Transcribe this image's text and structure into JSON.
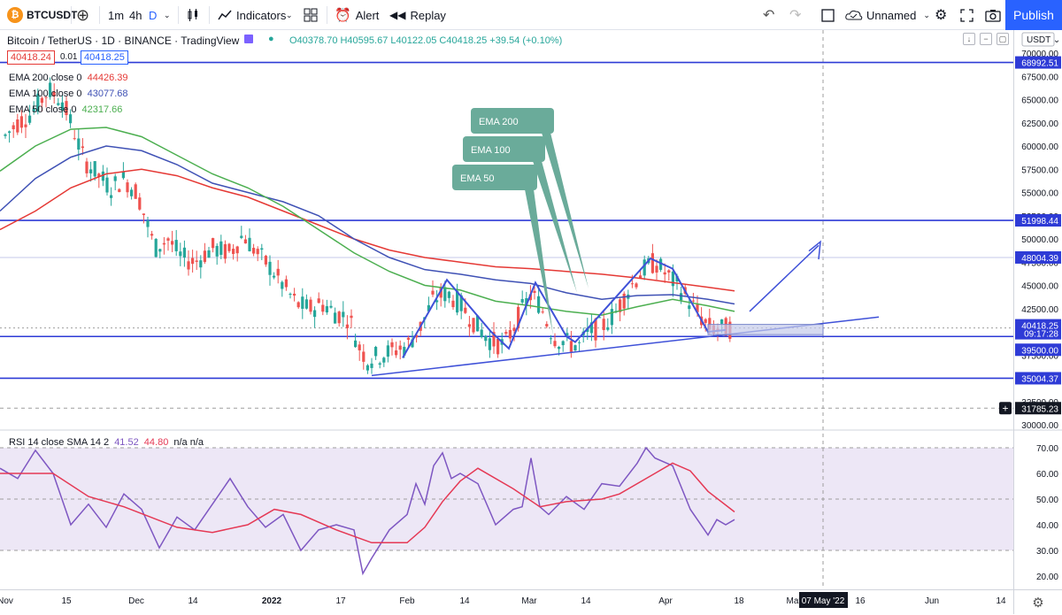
{
  "toolbar": {
    "symbol": "BTCUSDT",
    "symbol_icon": "bitcoin-icon",
    "intervals": [
      "1m",
      "4h",
      "D"
    ],
    "indicators_label": "Indicators",
    "alert_label": "Alert",
    "replay_label": "Replay",
    "layout_name": "Unnamed",
    "publish_label": "Publish"
  },
  "header": {
    "title": "Bitcoin / TetherUS · 1D · BINANCE · TradingView",
    "ohlc": "O40378.70 H40595.67 L40122.05 C40418.25 +39.54 (+0.10%)",
    "bid": "40418.24",
    "spread": "0.01",
    "ask": "40418.25",
    "currency": "USDT"
  },
  "indicators": [
    {
      "label": "EMA 200 close 0",
      "value": "44426.39",
      "color": "#e53935"
    },
    {
      "label": "EMA 100 close 0",
      "value": "43077.68",
      "color": "#3f51b5"
    },
    {
      "label": "EMA 50 close 0",
      "value": "42317.66",
      "color": "#4caf50"
    }
  ],
  "rsi_legend": {
    "label": "RSI 14 close SMA 14 2",
    "v1": "41.52",
    "v2": "44.80",
    "v3": "n/a n/a"
  },
  "colors": {
    "up": "#26a69a",
    "down": "#ef5350",
    "ema200": "#e53935",
    "ema100": "#3f51b5",
    "ema50": "#4caf50",
    "hline": "#2e3bd6",
    "drawing": "#3f51d8",
    "callout": "#6aab9a",
    "rsi": "#7e57c2",
    "rsi_ma": "#e53955",
    "rsi_band": "#ede7f6"
  },
  "callouts": [
    "EMA 200",
    "EMA 100",
    "EMA 50"
  ],
  "price_scale": {
    "ticks": [
      "70000.00",
      "67500.00",
      "65000.00",
      "62500.00",
      "60000.00",
      "57500.00",
      "55000.00",
      "52500.00",
      "50000.00",
      "47500.00",
      "45000.00",
      "42500.00",
      "37500.00",
      "32500.00",
      "30000.00"
    ],
    "levels": [
      {
        "value": "68992.51",
        "color": "#2e3bd6"
      },
      {
        "value": "51998.44",
        "color": "#2e3bd6"
      },
      {
        "value": "48004.39",
        "color": "#2e3bd6"
      },
      {
        "value": "40418.25",
        "color": "#2e3bd6"
      },
      {
        "value": "39500.00",
        "color": "#2e3bd6"
      },
      {
        "value": "35004.37",
        "color": "#2e3bd6"
      },
      {
        "value": "31785.23",
        "color": "#131722"
      }
    ],
    "countdown": "09:17:28"
  },
  "rsi_scale": {
    "ticks": [
      "70.00",
      "60.00",
      "50.00",
      "40.00",
      "30.00",
      "20.00"
    ]
  },
  "time_axis": {
    "labels": [
      "Nov",
      "15",
      "Dec",
      "14",
      "2022",
      "17",
      "Feb",
      "14",
      "Mar",
      "14",
      "Apr",
      "18",
      "May",
      "16",
      "Jun",
      "14"
    ],
    "crosshair_label": "07 May '22"
  },
  "chart_data": {
    "type": "candlestick",
    "title": "Bitcoin / TetherUS · 1D · BINANCE",
    "price_range": [
      29000,
      72000
    ],
    "rsi_range": [
      18,
      72
    ],
    "horizontal_levels": [
      68992.51,
      51998.44,
      39500.0,
      35004.37
    ],
    "series": [
      {
        "name": "EMA 200 close 0",
        "last": 44426.39
      },
      {
        "name": "EMA 100 close 0",
        "last": 43077.68
      },
      {
        "name": "EMA 50 close 0",
        "last": 42317.66
      }
    ],
    "last_close": 40418.25,
    "rsi": {
      "value": 41.52,
      "sma": 44.8,
      "upper": 70,
      "lower": 30
    },
    "ema_path_points": {
      "ema200": [
        [
          0,
          51000
        ],
        [
          40,
          53000
        ],
        [
          80,
          55500
        ],
        [
          120,
          57000
        ],
        [
          160,
          57500
        ],
        [
          200,
          56800
        ],
        [
          240,
          55500
        ],
        [
          280,
          54500
        ],
        [
          320,
          53000
        ],
        [
          360,
          51500
        ],
        [
          400,
          50000
        ],
        [
          440,
          48800
        ],
        [
          480,
          48000
        ],
        [
          520,
          47500
        ],
        [
          560,
          47000
        ],
        [
          600,
          46800
        ],
        [
          640,
          46500
        ],
        [
          680,
          46200
        ],
        [
          720,
          45800
        ],
        [
          760,
          45300
        ],
        [
          800,
          44800
        ],
        [
          830,
          44400
        ]
      ],
      "ema100": [
        [
          0,
          53000
        ],
        [
          40,
          56500
        ],
        [
          80,
          58800
        ],
        [
          120,
          60000
        ],
        [
          160,
          59500
        ],
        [
          200,
          58000
        ],
        [
          240,
          56000
        ],
        [
          280,
          55000
        ],
        [
          320,
          54000
        ],
        [
          360,
          52500
        ],
        [
          400,
          50000
        ],
        [
          440,
          48000
        ],
        [
          480,
          46700
        ],
        [
          520,
          46200
        ],
        [
          560,
          45600
        ],
        [
          600,
          45200
        ],
        [
          640,
          44200
        ],
        [
          680,
          43500
        ],
        [
          720,
          43900
        ],
        [
          760,
          44000
        ],
        [
          800,
          43500
        ],
        [
          830,
          43000
        ]
      ],
      "ema50": [
        [
          0,
          57300
        ],
        [
          40,
          60000
        ],
        [
          80,
          61800
        ],
        [
          120,
          62000
        ],
        [
          160,
          61000
        ],
        [
          200,
          59000
        ],
        [
          240,
          57000
        ],
        [
          280,
          55500
        ],
        [
          320,
          53500
        ],
        [
          360,
          51000
        ],
        [
          400,
          48500
        ],
        [
          440,
          46500
        ],
        [
          480,
          45000
        ],
        [
          520,
          44500
        ],
        [
          560,
          43300
        ],
        [
          600,
          42800
        ],
        [
          640,
          42200
        ],
        [
          680,
          41800
        ],
        [
          720,
          42700
        ],
        [
          760,
          43500
        ],
        [
          800,
          42800
        ],
        [
          830,
          42200
        ]
      ]
    },
    "rsi_points": [
      [
        0,
        62
      ],
      [
        20,
        58
      ],
      [
        40,
        69
      ],
      [
        60,
        60
      ],
      [
        80,
        40
      ],
      [
        100,
        48
      ],
      [
        120,
        39
      ],
      [
        140,
        52
      ],
      [
        160,
        46
      ],
      [
        180,
        31
      ],
      [
        200,
        43
      ],
      [
        220,
        38
      ],
      [
        240,
        48
      ],
      [
        260,
        58
      ],
      [
        280,
        47
      ],
      [
        300,
        39
      ],
      [
        320,
        44
      ],
      [
        340,
        30
      ],
      [
        360,
        38
      ],
      [
        380,
        40
      ],
      [
        400,
        38
      ],
      [
        410,
        21
      ],
      [
        420,
        27
      ],
      [
        440,
        38
      ],
      [
        460,
        44
      ],
      [
        470,
        56
      ],
      [
        480,
        48
      ],
      [
        490,
        63
      ],
      [
        500,
        68
      ],
      [
        510,
        58
      ],
      [
        520,
        60
      ],
      [
        540,
        56
      ],
      [
        560,
        40
      ],
      [
        580,
        46
      ],
      [
        590,
        47
      ],
      [
        600,
        66
      ],
      [
        610,
        47
      ],
      [
        620,
        44
      ],
      [
        640,
        51
      ],
      [
        660,
        46
      ],
      [
        680,
        56
      ],
      [
        700,
        55
      ],
      [
        720,
        64
      ],
      [
        730,
        70
      ],
      [
        740,
        66
      ],
      [
        760,
        63
      ],
      [
        780,
        46
      ],
      [
        800,
        36
      ],
      [
        810,
        42
      ],
      [
        820,
        40
      ],
      [
        830,
        42
      ]
    ],
    "rsi_ma_points": [
      [
        0,
        60
      ],
      [
        60,
        60
      ],
      [
        100,
        51
      ],
      [
        140,
        47
      ],
      [
        200,
        39
      ],
      [
        240,
        37
      ],
      [
        280,
        40
      ],
      [
        310,
        46
      ],
      [
        340,
        44
      ],
      [
        380,
        38
      ],
      [
        420,
        33
      ],
      [
        460,
        33
      ],
      [
        480,
        39
      ],
      [
        500,
        49
      ],
      [
        520,
        57
      ],
      [
        540,
        62
      ],
      [
        580,
        54
      ],
      [
        610,
        47
      ],
      [
        640,
        49
      ],
      [
        680,
        50
      ],
      [
        700,
        52
      ],
      [
        740,
        60
      ],
      [
        760,
        64
      ],
      [
        780,
        61
      ],
      [
        800,
        53
      ],
      [
        830,
        45
      ]
    ]
  }
}
